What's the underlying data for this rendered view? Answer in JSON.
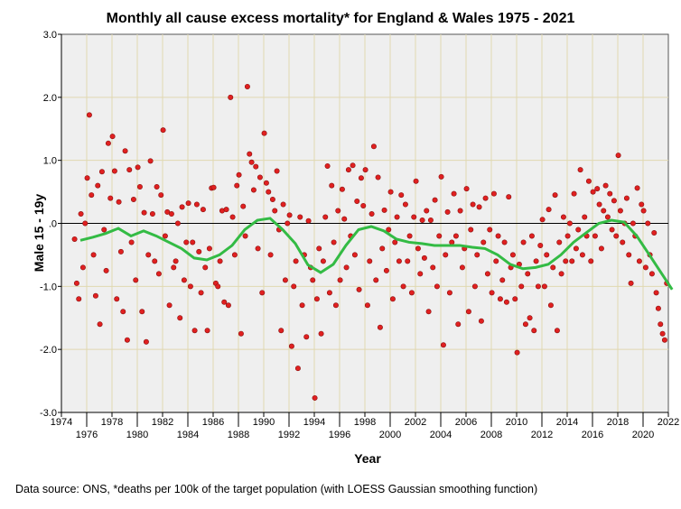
{
  "chart_data": {
    "type": "scatter",
    "title": "Monthly all cause excess mortality* for England & Wales 1975 - 2021",
    "xlabel": "Year",
    "ylabel": "Male 15 - 19y",
    "footnote": "Data source: ONS, *deaths per 100k of the target population (with LOESS Gaussian smoothing function)",
    "xlim": [
      1974,
      2022
    ],
    "ylim": [
      -3.0,
      3.0
    ],
    "xticks": [
      "1974",
      "1976",
      "1978",
      "1980",
      "1982",
      "1984",
      "1986",
      "1988",
      "1990",
      "1992",
      "1994",
      "1996",
      "1998",
      "2000",
      "2002",
      "2004",
      "2006",
      "2008",
      "2010",
      "2012",
      "2014",
      "2016",
      "2018",
      "2020",
      "2022"
    ],
    "yticks": [
      "-3.0",
      "-2.0",
      "-1.0",
      ".0",
      "1.0",
      "2.0",
      "3.0"
    ],
    "grid": true,
    "colors": {
      "points": "#e02020",
      "loess": "#33bb44",
      "background": "#efefef",
      "grid": "#e0d8b0"
    },
    "points_by_year": {
      "1975": [
        -0.25,
        -0.95,
        -1.2,
        0.15,
        -0.7,
        0.0
      ],
      "1976": [
        0.72,
        1.72,
        0.45,
        -0.5,
        -1.15,
        0.6
      ],
      "1977": [
        -1.6,
        0.82,
        -0.1,
        -0.75,
        1.27,
        0.4
      ],
      "1978": [
        1.38,
        0.83,
        -1.2,
        0.34,
        -0.45,
        -1.4
      ],
      "1979": [
        1.15,
        -1.85,
        0.85,
        -0.3,
        0.38,
        -0.9
      ],
      "1980": [
        0.89,
        0.58,
        -1.4,
        0.17,
        -1.88,
        -0.5
      ],
      "1981": [
        0.99,
        0.15,
        -0.6,
        0.58,
        -0.8,
        0.45
      ],
      "1982": [
        1.48,
        -0.2,
        0.18,
        -1.3,
        0.15,
        -0.7
      ],
      "1983": [
        -0.6,
        0.0,
        -1.5,
        0.26,
        -0.9,
        -0.3
      ],
      "1984": [
        0.32,
        -1.0,
        -0.3,
        -1.7,
        0.3,
        -0.45
      ],
      "1985": [
        -1.1,
        0.22,
        -0.7,
        -1.7,
        -0.4,
        0.56
      ],
      "1986": [
        0.57,
        -0.95,
        -1.0,
        -0.6,
        0.2,
        -1.25
      ],
      "1987": [
        0.22,
        -1.3,
        2.0,
        0.1,
        -0.5,
        0.6
      ],
      "1988": [
        0.77,
        -1.75,
        0.27,
        -0.2,
        2.17,
        1.1
      ],
      "1989": [
        0.97,
        0.53,
        0.9,
        -0.4,
        0.73,
        -1.1
      ],
      "1990": [
        1.43,
        0.64,
        0.5,
        -0.5,
        0.38,
        0.2
      ],
      "1991": [
        0.83,
        -0.1,
        -1.7,
        0.3,
        -0.9,
        0.0
      ],
      "1992": [
        0.13,
        -1.95,
        -1.0,
        -0.6,
        -2.3,
        0.1
      ],
      "1993": [
        -1.3,
        -0.5,
        -1.8,
        0.04,
        -0.7,
        -0.9
      ],
      "1994": [
        -2.77,
        -1.2,
        -0.4,
        -1.75,
        -0.6,
        0.1
      ],
      "1995": [
        0.91,
        -1.1,
        0.6,
        -0.3,
        -1.3,
        0.2
      ],
      "1996": [
        -0.9,
        0.54,
        0.07,
        -0.7,
        0.85,
        -0.2
      ],
      "1997": [
        0.92,
        -0.5,
        0.35,
        -1.05,
        0.72,
        0.28
      ],
      "1998": [
        0.85,
        -1.3,
        -0.6,
        0.15,
        1.22,
        -0.9
      ],
      "1999": [
        0.73,
        -1.65,
        -0.4,
        0.21,
        -0.75,
        -0.1
      ],
      "2000": [
        0.5,
        -1.2,
        -0.3,
        0.1,
        -0.6,
        0.45
      ],
      "2001": [
        -1.0,
        0.3,
        -0.6,
        -0.2,
        -1.1,
        0.1
      ],
      "2002": [
        0.67,
        -0.4,
        -0.8,
        0.05,
        -0.55,
        0.2
      ],
      "2003": [
        -1.4,
        0.05,
        -0.7,
        0.37,
        -1.0,
        -0.2
      ],
      "2004": [
        0.74,
        -1.93,
        -0.5,
        0.18,
        -1.1,
        -0.3
      ],
      "2005": [
        0.47,
        -0.2,
        -1.6,
        0.2,
        -0.7,
        -0.4
      ],
      "2006": [
        0.55,
        -1.4,
        -0.1,
        0.3,
        -1.0,
        -0.5
      ],
      "2007": [
        0.26,
        -1.55,
        -0.3,
        0.4,
        -0.8,
        -0.1
      ],
      "2008": [
        -1.1,
        0.47,
        -0.6,
        -0.2,
        -1.2,
        -0.9
      ],
      "2009": [
        -0.3,
        -1.25,
        0.42,
        -0.7,
        -0.5,
        -1.2
      ],
      "2010": [
        -2.05,
        -0.65,
        -1.0,
        -0.3,
        -1.6,
        -0.8
      ],
      "2011": [
        -1.5,
        -0.2,
        -1.7,
        -0.6,
        -1.0,
        -0.35
      ],
      "2012": [
        0.06,
        -1.0,
        -0.5,
        0.22,
        -1.3,
        -0.7
      ],
      "2013": [
        0.45,
        -1.7,
        -0.3,
        -0.8,
        0.1,
        -0.6
      ],
      "2014": [
        -0.2,
        0.0,
        -0.6,
        0.47,
        -0.4,
        -0.1
      ],
      "2015": [
        0.85,
        -0.5,
        0.1,
        -0.2,
        0.67,
        -0.6
      ],
      "2016": [
        0.5,
        -0.2,
        0.55,
        0.3,
        -0.4,
        0.2
      ],
      "2017": [
        0.6,
        0.1,
        0.47,
        -0.1,
        0.36,
        -0.2
      ],
      "2018": [
        1.08,
        0.2,
        -0.3,
        0.0,
        0.4,
        -0.5
      ],
      "2019": [
        -0.95,
        0.0,
        -0.2,
        0.56,
        -0.6,
        0.3
      ],
      "2020": [
        0.2,
        -0.7,
        0.0,
        -0.5,
        -0.8,
        -0.15
      ],
      "2021": [
        -1.1,
        -1.35,
        -1.6,
        -1.75,
        -1.85,
        -0.95
      ]
    },
    "loess": {
      "x": [
        1975,
        1976,
        1977,
        1978,
        1979,
        1980,
        1981,
        1982,
        1983,
        1984,
        1985,
        1986,
        1987,
        1988,
        1989,
        1990,
        1991,
        1992,
        1993,
        1994,
        1995,
        1996,
        1997,
        1998,
        1999,
        2000,
        2001,
        2002,
        2003,
        2004,
        2005,
        2006,
        2007,
        2008,
        2009,
        2010,
        2011,
        2012,
        2013,
        2014,
        2015,
        2016,
        2017,
        2018,
        2019,
        2020,
        2021.8
      ],
      "y": [
        -0.27,
        -0.22,
        -0.16,
        -0.08,
        -0.2,
        -0.12,
        -0.2,
        -0.3,
        -0.4,
        -0.55,
        -0.58,
        -0.5,
        -0.35,
        -0.1,
        0.05,
        0.08,
        -0.1,
        -0.32,
        -0.66,
        -0.78,
        -0.65,
        -0.35,
        -0.1,
        -0.05,
        -0.12,
        -0.25,
        -0.3,
        -0.32,
        -0.35,
        -0.35,
        -0.35,
        -0.38,
        -0.4,
        -0.5,
        -0.65,
        -0.72,
        -0.7,
        -0.65,
        -0.5,
        -0.3,
        -0.15,
        0.0,
        0.05,
        0.02,
        -0.2,
        -0.5,
        -1.05
      ]
    }
  }
}
